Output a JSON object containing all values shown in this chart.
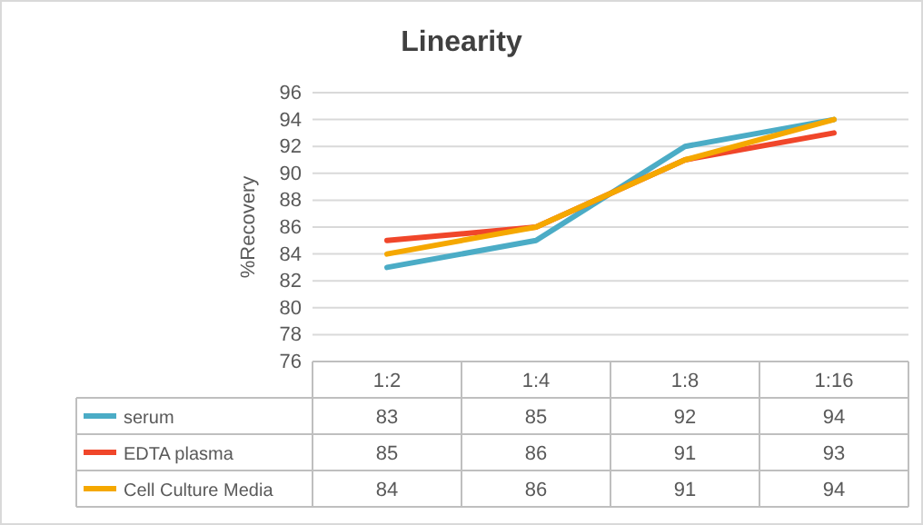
{
  "chart_data": {
    "type": "line",
    "title": "Linearity",
    "ylabel": "%Recovery",
    "categories": [
      "1:2",
      "1:4",
      "1:8",
      "1:16"
    ],
    "series": [
      {
        "name": "serum",
        "color": "#4bacc6",
        "values": [
          83,
          85,
          92,
          94
        ]
      },
      {
        "name": "EDTA plasma",
        "color": "#f0462a",
        "values": [
          85,
          86,
          91,
          93
        ]
      },
      {
        "name": "Cell Culture Media",
        "color": "#f5a800",
        "values": [
          84,
          86,
          91,
          94
        ]
      }
    ],
    "ylim": [
      76,
      96
    ],
    "yticks": [
      76,
      78,
      80,
      82,
      84,
      86,
      88,
      90,
      92,
      94,
      96
    ],
    "grid": "y",
    "legend": "bottom",
    "data_labels": true
  }
}
